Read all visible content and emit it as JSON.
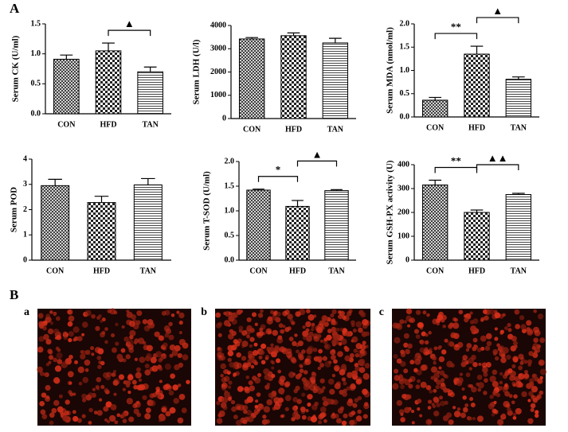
{
  "figure": {
    "panel_a_label": "A",
    "panel_b_label": "B",
    "image_labels": [
      "a",
      "b",
      "c"
    ]
  },
  "chart_data": [
    {
      "type": "bar",
      "y_label": "Serum CK (U/ml)",
      "categories": [
        "CON",
        "HFD",
        "TAN"
      ],
      "values": [
        0.91,
        1.05,
        0.7
      ],
      "errors": [
        0.07,
        0.13,
        0.08
      ],
      "bar_patterns": [
        "crosshatch",
        "checker",
        "hlines"
      ],
      "ylim": [
        0,
        1.5
      ],
      "yticks": [
        {
          "value": 0,
          "label": "0.0"
        },
        0.5,
        {
          "value": 1,
          "label": "1.0"
        },
        1.5
      ],
      "annotations": [
        {
          "text": "▲",
          "between": [
            "HFD",
            "TAN"
          ]
        }
      ]
    },
    {
      "type": "bar",
      "y_label": "Serum LDH (U/l)",
      "categories": [
        "CON",
        "HFD",
        "TAN"
      ],
      "values": [
        3420,
        3560,
        3250
      ],
      "errors": [
        60,
        120,
        200
      ],
      "bar_patterns": [
        "crosshatch",
        "checker",
        "hlines"
      ],
      "ylim": [
        0,
        4000
      ],
      "yticks": [
        0,
        1000,
        2000,
        3000,
        4000
      ],
      "annotations": []
    },
    {
      "type": "bar",
      "y_label": "Serum MDA (nmol/ml)",
      "categories": [
        "CON",
        "HFD",
        "TAN"
      ],
      "values": [
        0.36,
        1.35,
        0.81
      ],
      "errors": [
        0.06,
        0.17,
        0.05
      ],
      "bar_patterns": [
        "crosshatch",
        "checker",
        "hlines"
      ],
      "ylim": [
        0,
        2
      ],
      "yticks": [
        {
          "value": 0,
          "label": "0.0"
        },
        0.5,
        {
          "value": 1,
          "label": "1.0"
        },
        1.5,
        {
          "value": 2,
          "label": "2.0"
        }
      ],
      "annotations": [
        {
          "text": "**",
          "between": [
            "CON",
            "HFD"
          ]
        },
        {
          "text": "▲",
          "between": [
            "HFD",
            "TAN"
          ]
        }
      ]
    },
    {
      "type": "bar",
      "y_label": "Serum POD",
      "categories": [
        "CON",
        "HFD",
        "TAN"
      ],
      "values": [
        2.95,
        2.28,
        2.98
      ],
      "errors": [
        0.25,
        0.25,
        0.25
      ],
      "bar_patterns": [
        "crosshatch",
        "checker",
        "hlines"
      ],
      "ylim": [
        0,
        4
      ],
      "yticks": [
        0,
        1,
        2,
        3,
        4
      ],
      "annotations": []
    },
    {
      "type": "bar",
      "y_label": "Serum T-SOD (U/ml)",
      "categories": [
        "CON",
        "HFD",
        "TAN"
      ],
      "values": [
        1.42,
        1.09,
        1.41
      ],
      "errors": [
        0.02,
        0.12,
        0.02
      ],
      "bar_patterns": [
        "crosshatch",
        "checker",
        "hlines"
      ],
      "ylim": [
        0,
        2
      ],
      "yticks": [
        {
          "value": 0,
          "label": "0.0"
        },
        0.5,
        {
          "value": 1,
          "label": "1.0"
        },
        1.5,
        {
          "value": 2,
          "label": "2.0"
        }
      ],
      "annotations": [
        {
          "text": "*",
          "between": [
            "CON",
            "HFD"
          ]
        },
        {
          "text": "▲",
          "between": [
            "HFD",
            "TAN"
          ]
        }
      ]
    },
    {
      "type": "bar",
      "y_label": "Serum GSH-PX activity (U)",
      "categories": [
        "CON",
        "HFD",
        "TAN"
      ],
      "values": [
        315,
        200,
        275
      ],
      "errors": [
        20,
        10,
        5
      ],
      "bar_patterns": [
        "crosshatch",
        "checker",
        "hlines"
      ],
      "ylim": [
        0,
        400
      ],
      "yticks": [
        0,
        100,
        200,
        300,
        400
      ],
      "annotations": [
        {
          "text": "**",
          "between": [
            "CON",
            "HFD"
          ]
        },
        {
          "text": "▲▲",
          "between": [
            "HFD",
            "TAN"
          ]
        }
      ]
    }
  ]
}
